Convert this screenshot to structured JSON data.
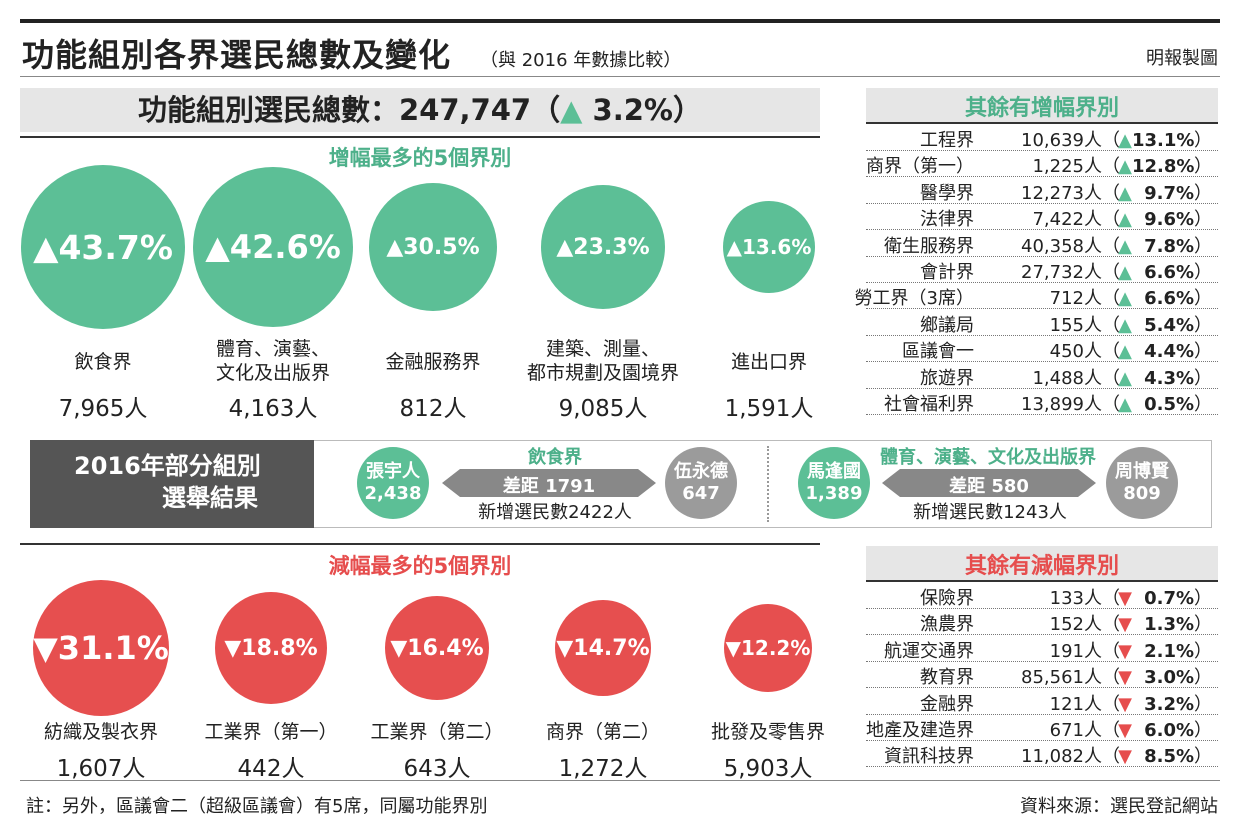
{
  "header": {
    "title": "功能組別各界選民總數及變化",
    "subtitle": "（與 2016 年數據比較）",
    "credit": "明報製圖"
  },
  "total": {
    "label": "功能組別選民總數：247,747（",
    "arrow": "▲",
    "change": "3.2%",
    "close": "）"
  },
  "increase_section": {
    "title": "增幅最多的5個界別"
  },
  "decrease_section": {
    "title": "減幅最多的5個界別"
  },
  "top_increase": [
    {
      "pct": "▲43.7%",
      "line1": "飲食界",
      "line2": "",
      "voters": "7,965人"
    },
    {
      "pct": "▲42.6%",
      "line1": "體育、演藝、",
      "line2": "文化及出版界",
      "voters": "4,163人"
    },
    {
      "pct": "▲30.5%",
      "line1": "金融服務界",
      "line2": "",
      "voters": "812人"
    },
    {
      "pct": "▲23.3%",
      "line1": "建築、測量、",
      "line2": "都市規劃及園境界",
      "voters": "9,085人"
    },
    {
      "pct": "▲13.6%",
      "line1": "進出口界",
      "line2": "",
      "voters": "1,591人"
    }
  ],
  "top_decrease": [
    {
      "pct": "▼31.1%",
      "line1": "紡織及製衣界",
      "voters": "1,607人"
    },
    {
      "pct": "▼18.8%",
      "line1": "工業界（第一）",
      "voters": "442人"
    },
    {
      "pct": "▼16.4%",
      "line1": "工業界（第二）",
      "voters": "643人"
    },
    {
      "pct": "▼14.7%",
      "line1": "商界（第二）",
      "voters": "1,272人"
    },
    {
      "pct": "▼12.2%",
      "line1": "批發及零售界",
      "voters": "5,903人"
    }
  ],
  "other_increase": {
    "title": "其餘有增幅界別",
    "rows": [
      {
        "name": "工程界",
        "count": "10,639人（",
        "arrow": "▲",
        "pct": "13.1%",
        "close": "）"
      },
      {
        "name": "商界（第一）",
        "count": "1,225人（",
        "arrow": "▲",
        "pct": "12.8%",
        "close": "）"
      },
      {
        "name": "醫學界",
        "count": "12,273人（",
        "arrow": "▲",
        "pct": "9.7%",
        "close": "）"
      },
      {
        "name": "法律界",
        "count": "7,422人（",
        "arrow": "▲",
        "pct": "9.6%",
        "close": "）"
      },
      {
        "name": "衛生服務界",
        "count": "40,358人（",
        "arrow": "▲",
        "pct": "7.8%",
        "close": "）"
      },
      {
        "name": "會計界",
        "count": "27,732人（",
        "arrow": "▲",
        "pct": "6.6%",
        "close": "）"
      },
      {
        "name": "勞工界（3席）",
        "count": "712人（",
        "arrow": "▲",
        "pct": "6.6%",
        "close": "）"
      },
      {
        "name": "鄉議局",
        "count": "155人（",
        "arrow": "▲",
        "pct": "5.4%",
        "close": "）"
      },
      {
        "name": "區議會一",
        "count": "450人（",
        "arrow": "▲",
        "pct": "4.4%",
        "close": "）"
      },
      {
        "name": "旅遊界",
        "count": "1,488人（",
        "arrow": "▲",
        "pct": "4.3%",
        "close": "）"
      },
      {
        "name": "社會福利界",
        "count": "13,899人（",
        "arrow": "▲",
        "pct": "0.5%",
        "close": "）"
      }
    ]
  },
  "other_decrease": {
    "title": "其餘有減幅界別",
    "rows": [
      {
        "name": "保險界",
        "count": "133人（",
        "arrow": "▼",
        "pct": "0.7%",
        "close": "）"
      },
      {
        "name": "漁農界",
        "count": "152人（",
        "arrow": "▼",
        "pct": "1.3%",
        "close": "）"
      },
      {
        "name": "航運交通界",
        "count": "191人（",
        "arrow": "▼",
        "pct": "2.1%",
        "close": "）"
      },
      {
        "name": "教育界",
        "count": "85,561人（",
        "arrow": "▼",
        "pct": "3.0%",
        "close": "）"
      },
      {
        "name": "金融界",
        "count": "121人（",
        "arrow": "▼",
        "pct": "3.2%",
        "close": "）"
      },
      {
        "name": "地產及建造界",
        "count": "671人（",
        "arrow": "▼",
        "pct": "6.0%",
        "close": "）"
      },
      {
        "name": "資訊科技界",
        "count": "11,082人（",
        "arrow": "▼",
        "pct": "8.5%",
        "close": "）"
      }
    ]
  },
  "election_2016": {
    "title_line1": "2016年部分組別",
    "title_line2": "選舉結果",
    "contests": [
      {
        "sector": "飲食界",
        "winner": "張宇人",
        "winner_votes": "2,438",
        "gap": "差距 1791",
        "loser": "伍永德",
        "loser_votes": "647",
        "new_voters": "新增選民數2422人"
      },
      {
        "sector": "體育、演藝、文化及出版界",
        "winner": "馬逢國",
        "winner_votes": "1,389",
        "gap": "差距 580",
        "loser": "周博賢",
        "loser_votes": "809",
        "new_voters": "新增選民數1243人"
      }
    ]
  },
  "footer": {
    "note": "註：另外，區議會二（超級區議會）有5席，同屬功能界別",
    "source": "資料來源：選民登記網站"
  },
  "colors": {
    "increase": "#5cbf96",
    "decrease": "#e64f4f",
    "neutral": "#9b9b9b",
    "band": "#555555"
  },
  "chart_data": [
    {
      "type": "bubble",
      "title": "增幅最多的5個界別",
      "categories": [
        "飲食界",
        "體育、演藝、文化及出版界",
        "金融服務界",
        "建築、測量、都市規劃及園境界",
        "進出口界"
      ],
      "values": [
        43.7,
        42.6,
        30.5,
        23.3,
        13.6
      ],
      "voters": [
        7965,
        4163,
        812,
        9085,
        1591
      ]
    },
    {
      "type": "bubble",
      "title": "減幅最多的5個界別",
      "categories": [
        "紡織及製衣界",
        "工業界（第一）",
        "工業界（第二）",
        "商界（第二）",
        "批發及零售界"
      ],
      "values": [
        -31.1,
        -18.8,
        -16.4,
        -14.7,
        -12.2
      ],
      "voters": [
        1607,
        442,
        643,
        1272,
        5903
      ]
    }
  ]
}
